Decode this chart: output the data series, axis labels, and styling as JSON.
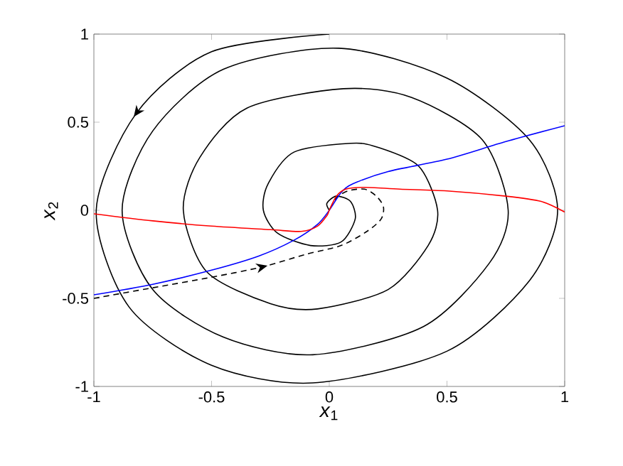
{
  "chart_data": {
    "type": "line",
    "xlabel": "*x*$_{1}$",
    "ylabel": "*x*$_{2}$",
    "xlim": [
      -1,
      1
    ],
    "ylim": [
      -1,
      1
    ],
    "xticks": [
      -1,
      -0.5,
      0,
      0.5,
      1
    ],
    "yticks": [
      -1,
      -0.5,
      0,
      0.5,
      1
    ],
    "grid": false,
    "series": [
      {
        "color": "#000000",
        "line_style": "solid",
        "x": [
          0,
          -0.5,
          -0.82,
          -0.99,
          -0.85,
          -0.5,
          -0.07,
          0.5,
          0.85,
          0.97,
          0.85,
          0.5,
          0.04,
          -0.45,
          -0.75,
          -0.88,
          -0.75,
          -0.45,
          -0.07,
          0.4,
          0.68,
          0.76,
          0.65,
          0.35,
          0.06,
          -0.35,
          -0.55,
          -0.62,
          -0.52,
          -0.25,
          -0.05,
          0.25,
          0.42,
          0.46,
          0.38,
          0.2,
          0.09,
          -0.15,
          -0.26,
          -0.28,
          -0.22,
          -0.08,
          0.05,
          0.11,
          0.09,
          0.03,
          -0.01,
          0
        ],
        "values": [
          1,
          0.9,
          0.55,
          0.0,
          -0.55,
          -0.88,
          -0.98,
          -0.8,
          -0.4,
          0.0,
          0.4,
          0.75,
          0.92,
          0.8,
          0.45,
          0.0,
          -0.45,
          -0.72,
          -0.82,
          -0.66,
          -0.3,
          0.0,
          0.4,
          0.64,
          0.69,
          0.58,
          0.3,
          0.0,
          -0.35,
          -0.53,
          -0.56,
          -0.45,
          -0.2,
          0.0,
          0.25,
          0.36,
          0.38,
          0.33,
          0.15,
          0.0,
          -0.13,
          -0.2,
          -0.18,
          -0.05,
          0.05,
          0.08,
          0.04,
          0
        ]
      },
      {
        "color": "#000000",
        "line_style": "dashed",
        "x": [
          -1,
          -0.75,
          -0.5,
          -0.28,
          -0.1,
          0.05,
          0.16,
          0.22,
          0.23,
          0.2,
          0.15,
          0.08,
          0.03,
          0
        ],
        "values": [
          -0.5,
          -0.44,
          -0.38,
          -0.32,
          -0.25,
          -0.2,
          -0.12,
          -0.05,
          0.02,
          0.08,
          0.12,
          0.11,
          0.07,
          0
        ]
      },
      {
        "color": "#0000ff",
        "line_style": "solid",
        "x": [
          -1,
          -0.75,
          -0.5,
          -0.3,
          -0.15,
          -0.05,
          0,
          0.05,
          0.1,
          0.25,
          0.5,
          0.75,
          1
        ],
        "values": [
          -0.48,
          -0.42,
          -0.34,
          -0.26,
          -0.17,
          -0.08,
          0,
          0.1,
          0.15,
          0.22,
          0.29,
          0.39,
          0.48
        ]
      },
      {
        "color": "#ff0000",
        "line_style": "solid",
        "x": [
          -1,
          -0.75,
          -0.5,
          -0.25,
          -0.12,
          -0.05,
          -0.01,
          0,
          0.03,
          0.07,
          0.15,
          0.3,
          0.5,
          0.75,
          0.9,
          1
        ],
        "values": [
          -0.02,
          -0.06,
          -0.09,
          -0.11,
          -0.12,
          -0.09,
          -0.03,
          0,
          0.08,
          0.12,
          0.13,
          0.12,
          0.11,
          0.08,
          0.05,
          -0.01
        ]
      }
    ]
  }
}
